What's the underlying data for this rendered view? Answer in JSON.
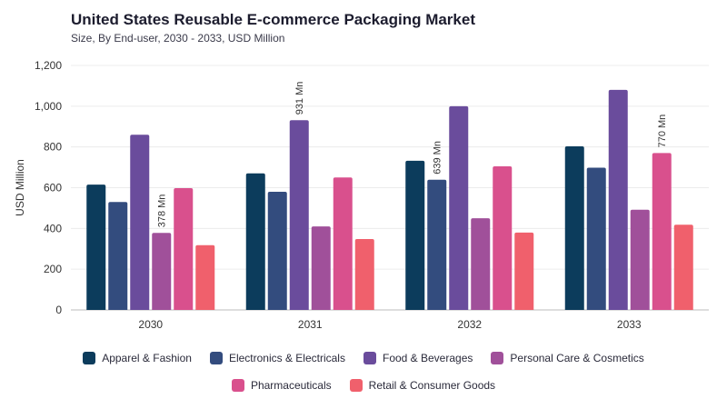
{
  "header": {
    "title": "United States Reusable E-commerce Packaging Market",
    "subtitle": "Size, By End-user, 2030 - 2033, USD Million"
  },
  "chart_data": {
    "type": "bar",
    "title": "United States Reusable E-commerce Packaging Market",
    "subtitle": "Size, By End-user, 2030 - 2033, USD Million",
    "xlabel": "",
    "ylabel": "USD Million",
    "ylim": [
      0,
      1200
    ],
    "yticks": [
      0,
      200,
      400,
      600,
      800,
      1000,
      1200
    ],
    "ytick_labels": [
      "0",
      "200",
      "400",
      "600",
      "800",
      "1,000",
      "1,200"
    ],
    "grid": true,
    "legend_position": "bottom",
    "categories": [
      "2030",
      "2031",
      "2032",
      "2033"
    ],
    "series": [
      {
        "name": "Apparel & Fashion",
        "color": "#0c3c5c",
        "values": [
          615,
          670,
          732,
          803
        ]
      },
      {
        "name": "Electronics & Electricals",
        "color": "#334c7e",
        "values": [
          530,
          580,
          639,
          698
        ]
      },
      {
        "name": "Food & Beverages",
        "color": "#6a4c9c",
        "values": [
          860,
          931,
          1000,
          1080
        ]
      },
      {
        "name": "Personal Care & Cosmetics",
        "color": "#a0509a",
        "values": [
          378,
          410,
          450,
          492
        ]
      },
      {
        "name": "Pharmaceuticals",
        "color": "#d9508d",
        "values": [
          598,
          650,
          705,
          770
        ]
      },
      {
        "name": "Retail & Consumer Goods",
        "color": "#f0606c",
        "values": [
          318,
          348,
          380,
          418
        ]
      }
    ],
    "annotations": [
      {
        "category": "2030",
        "series": "Personal Care & Cosmetics",
        "text": "378 Mn"
      },
      {
        "category": "2031",
        "series": "Food & Beverages",
        "text": "931 Mn"
      },
      {
        "category": "2032",
        "series": "Electronics & Electricals",
        "text": "639 Mn"
      },
      {
        "category": "2033",
        "series": "Pharmaceuticals",
        "text": "770 Mn"
      }
    ]
  },
  "legend": {
    "row1": [
      "Apparel & Fashion",
      "Electronics & Electricals",
      "Food & Beverages",
      "Personal Care & Cosmetics"
    ],
    "row2": [
      "Pharmaceuticals",
      "Retail & Consumer Goods"
    ]
  }
}
